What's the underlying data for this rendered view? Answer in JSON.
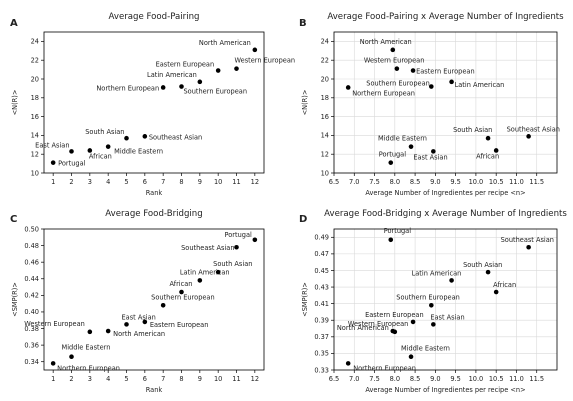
{
  "chart_data": [
    {
      "panel": "A",
      "type": "scatter",
      "title": "Average Food-Pairing",
      "xlabel": "Rank",
      "ylabel": "<N(R)>",
      "xlim": [
        0.5,
        12.5
      ],
      "ylim": [
        10,
        25
      ],
      "xticks": [
        1,
        2,
        3,
        4,
        5,
        6,
        7,
        8,
        9,
        10,
        11,
        12
      ],
      "yticks": [
        10,
        12,
        14,
        16,
        18,
        20,
        22,
        24
      ],
      "grid": false,
      "points": [
        {
          "x": 1,
          "y": 11.1,
          "label": "Portugal"
        },
        {
          "x": 2,
          "y": 12.3,
          "label": "East Asian"
        },
        {
          "x": 3,
          "y": 12.4,
          "label": "African"
        },
        {
          "x": 4,
          "y": 12.8,
          "label": "Middle Eastern"
        },
        {
          "x": 5,
          "y": 13.7,
          "label": "South Asian"
        },
        {
          "x": 6,
          "y": 13.9,
          "label": "Southeast Asian"
        },
        {
          "x": 7,
          "y": 19.1,
          "label": "Northern European"
        },
        {
          "x": 8,
          "y": 19.2,
          "label": "Southern European"
        },
        {
          "x": 9,
          "y": 19.7,
          "label": "Latin American"
        },
        {
          "x": 10,
          "y": 20.9,
          "label": "Eastern European"
        },
        {
          "x": 11,
          "y": 21.1,
          "label": "Western European"
        },
        {
          "x": 12,
          "y": 23.1,
          "label": "North American"
        }
      ]
    },
    {
      "panel": "B",
      "type": "scatter",
      "title": "Average Food-Pairing x Average Number of Ingredients",
      "xlabel": "Average Number of Ingredientes per recipe <n>",
      "ylabel": "<N(R)>",
      "xlim": [
        6.5,
        12.0
      ],
      "ylim": [
        10,
        25
      ],
      "xticks": [
        6.5,
        7.0,
        7.5,
        8.0,
        8.5,
        9.0,
        9.5,
        10.0,
        10.5,
        11.0,
        11.5
      ],
      "yticks": [
        10,
        12,
        14,
        16,
        18,
        20,
        22,
        24
      ],
      "grid": true,
      "points": [
        {
          "x": 6.85,
          "y": 19.1,
          "label": "Northern European"
        },
        {
          "x": 7.95,
          "y": 23.1,
          "label": "North American"
        },
        {
          "x": 8.05,
          "y": 21.1,
          "label": "Western European"
        },
        {
          "x": 8.45,
          "y": 20.9,
          "label": "Eastern European"
        },
        {
          "x": 8.9,
          "y": 19.2,
          "label": "Southern European"
        },
        {
          "x": 9.4,
          "y": 19.7,
          "label": "Latin American"
        },
        {
          "x": 7.9,
          "y": 11.1,
          "label": "Portugal"
        },
        {
          "x": 8.4,
          "y": 12.8,
          "label": "Middle Eastern"
        },
        {
          "x": 8.95,
          "y": 12.3,
          "label": "East Asian"
        },
        {
          "x": 10.3,
          "y": 13.7,
          "label": "South Asian"
        },
        {
          "x": 10.5,
          "y": 12.4,
          "label": "African"
        },
        {
          "x": 11.3,
          "y": 13.9,
          "label": "Southeast Asian"
        }
      ]
    },
    {
      "panel": "C",
      "type": "scatter",
      "title": "Average Food-Bridging",
      "xlabel": "Rank",
      "ylabel": "<SMP(R)>",
      "xlim": [
        0.5,
        12.5
      ],
      "ylim": [
        0.33,
        0.5
      ],
      "xticks": [
        1,
        2,
        3,
        4,
        5,
        6,
        7,
        8,
        9,
        10,
        11,
        12
      ],
      "yticks": [
        0.34,
        0.36,
        0.38,
        0.4,
        0.42,
        0.44,
        0.46,
        0.48,
        0.5
      ],
      "ytick_format": "%.2f",
      "grid": false,
      "points": [
        {
          "x": 1,
          "y": 0.338,
          "label": "Northern European"
        },
        {
          "x": 2,
          "y": 0.346,
          "label": "Middle Eastern"
        },
        {
          "x": 3,
          "y": 0.376,
          "label": "Western European"
        },
        {
          "x": 4,
          "y": 0.377,
          "label": "North American"
        },
        {
          "x": 5,
          "y": 0.385,
          "label": "East Asian"
        },
        {
          "x": 6,
          "y": 0.388,
          "label": "Eastern European"
        },
        {
          "x": 7,
          "y": 0.408,
          "label": "Southern European"
        },
        {
          "x": 8,
          "y": 0.424,
          "label": "African"
        },
        {
          "x": 9,
          "y": 0.438,
          "label": "Latin American"
        },
        {
          "x": 10,
          "y": 0.448,
          "label": "South Asian"
        },
        {
          "x": 11,
          "y": 0.478,
          "label": "Southeast Asian"
        },
        {
          "x": 12,
          "y": 0.487,
          "label": "Portugal"
        }
      ]
    },
    {
      "panel": "D",
      "type": "scatter",
      "title": "Average Food-Bridging x Average Number of Ingredients",
      "xlabel": "Average Number of Ingredientes per recipe <n>",
      "ylabel": "<SMP(R)>",
      "xlim": [
        6.5,
        12.0
      ],
      "ylim": [
        0.33,
        0.5
      ],
      "xticks": [
        6.5,
        7.0,
        7.5,
        8.0,
        8.5,
        9.0,
        9.5,
        10.0,
        10.5,
        11.0,
        11.5
      ],
      "yticks": [
        0.33,
        0.35,
        0.37,
        0.39,
        0.41,
        0.43,
        0.45,
        0.47,
        0.49
      ],
      "ytick_format": "%.2f",
      "grid": true,
      "points": [
        {
          "x": 6.85,
          "y": 0.338,
          "label": "Northern European"
        },
        {
          "x": 7.9,
          "y": 0.487,
          "label": "Portugal"
        },
        {
          "x": 7.95,
          "y": 0.377,
          "label": "North American"
        },
        {
          "x": 8.0,
          "y": 0.376,
          "label": "Western European"
        },
        {
          "x": 8.4,
          "y": 0.346,
          "label": "Middle Eastern"
        },
        {
          "x": 8.45,
          "y": 0.388,
          "label": "Eastern European"
        },
        {
          "x": 8.95,
          "y": 0.385,
          "label": "East Asian"
        },
        {
          "x": 8.9,
          "y": 0.408,
          "label": "Southern European"
        },
        {
          "x": 9.4,
          "y": 0.438,
          "label": "Latin American"
        },
        {
          "x": 10.3,
          "y": 0.448,
          "label": "South Asian"
        },
        {
          "x": 10.5,
          "y": 0.424,
          "label": "African"
        },
        {
          "x": 11.3,
          "y": 0.478,
          "label": "Southeast Asian"
        }
      ]
    }
  ]
}
